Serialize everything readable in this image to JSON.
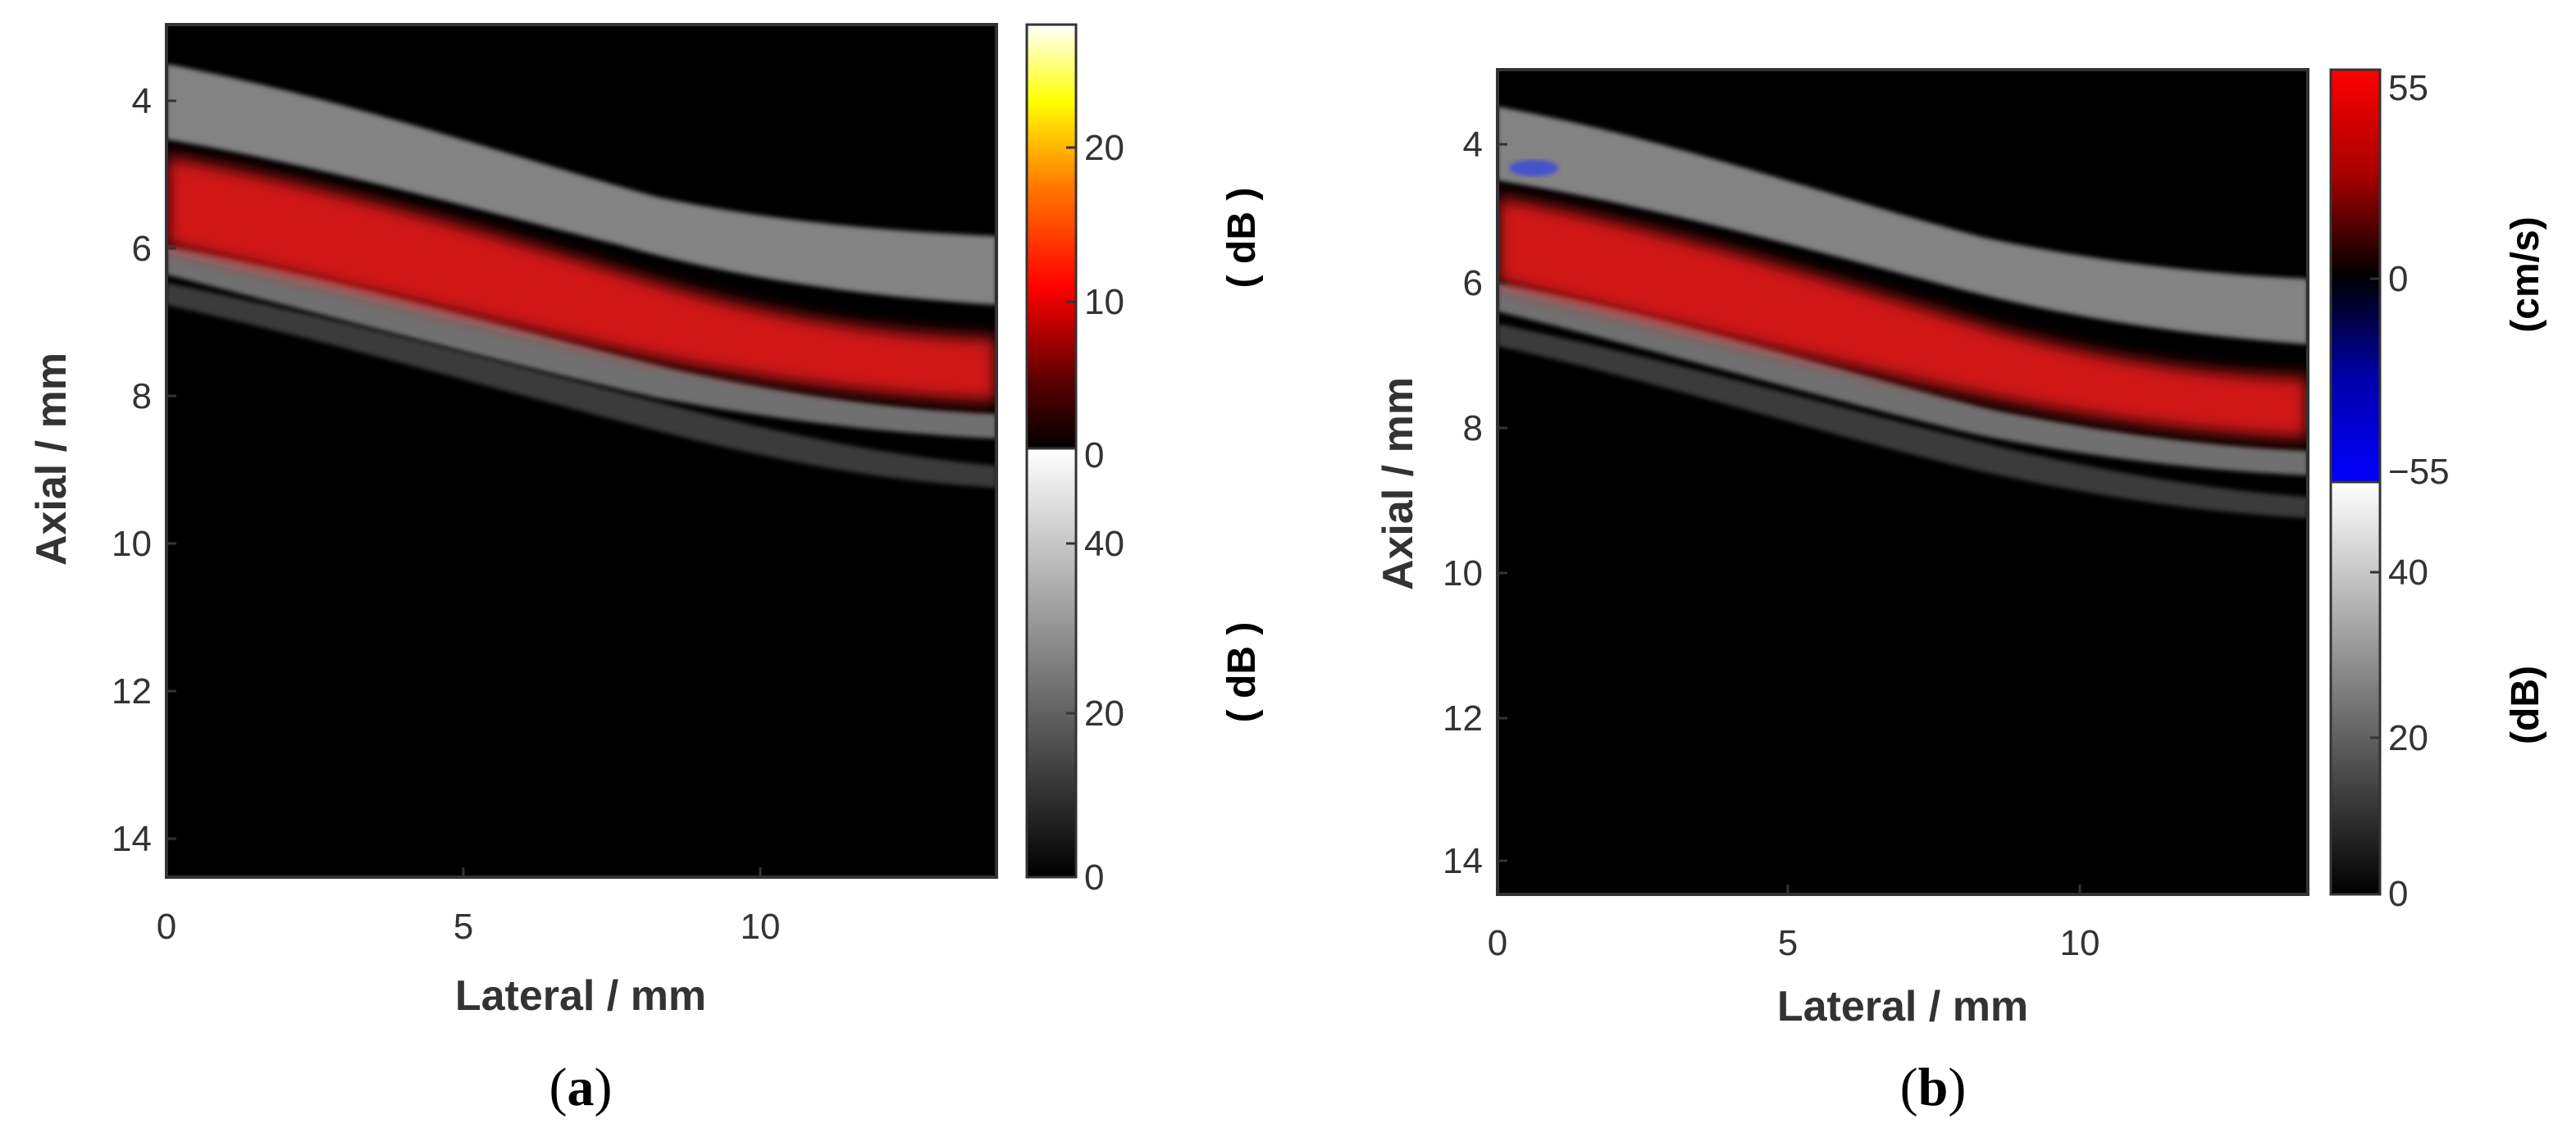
{
  "panels": [
    {
      "id": "a",
      "caption_open": "(",
      "caption_letter": "a",
      "caption_close": ")",
      "x_axis": {
        "label": "Lateral / mm",
        "ticks": [
          "0",
          "5",
          "10"
        ],
        "range": [
          0,
          14
        ]
      },
      "y_axis": {
        "label": "Axial / mm",
        "ticks": [
          "4",
          "6",
          "8",
          "10",
          "12",
          "14"
        ],
        "range": [
          3.1,
          14.5
        ]
      },
      "colorbar_color": {
        "ticks": [
          "20",
          "10",
          "0"
        ],
        "unit": "( dB )",
        "range": [
          0,
          28
        ]
      },
      "colorbar_gray": {
        "ticks": [
          "40",
          "20",
          "0"
        ],
        "unit": "( dB )",
        "range": [
          0,
          60
        ]
      }
    },
    {
      "id": "b",
      "caption_open": "(",
      "caption_letter": "b",
      "caption_close": ")",
      "x_axis": {
        "label": "Lateral / mm",
        "ticks": [
          "0",
          "5",
          "10"
        ],
        "range": [
          0,
          14
        ]
      },
      "y_axis": {
        "label": "Axial / mm",
        "ticks": [
          "4",
          "6",
          "8",
          "10",
          "12",
          "14"
        ],
        "range": [
          3.1,
          14.5
        ]
      },
      "colorbar_color": {
        "ticks": [
          "55",
          "0",
          "−55"
        ],
        "unit": "(cm/s)",
        "range": [
          -55,
          55
        ]
      },
      "colorbar_gray": {
        "ticks": [
          "40",
          "20",
          "0"
        ],
        "unit": "(dB)",
        "range": [
          0,
          60
        ]
      }
    }
  ],
  "colors": {
    "background": "#000000",
    "flow_red": "#ff1a1a",
    "flow_blue": "#1a33ff",
    "tissue_gray": "#bfbfbf",
    "axis_text": "#333333"
  }
}
